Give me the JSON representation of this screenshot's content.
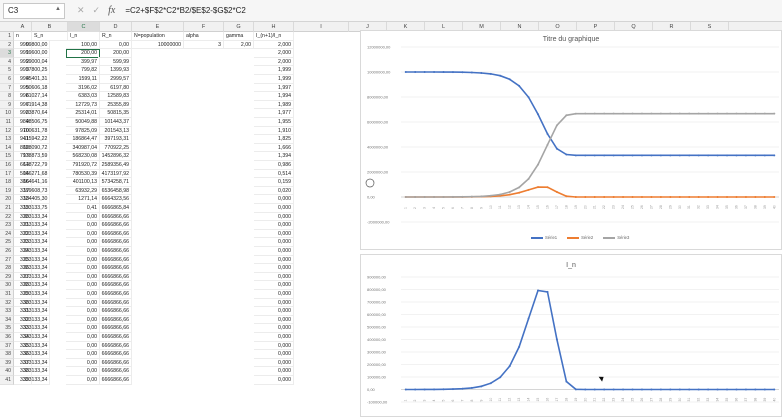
{
  "formula_bar": {
    "name_box": "C3",
    "icons": [
      "close-icon",
      "check-icon",
      "fx-icon"
    ],
    "fx_label": "fx",
    "formula": "=C2+$F$2*C2*B2/$E$2-$G$2*C2"
  },
  "columns": [
    "A",
    "B",
    "C",
    "D",
    "E",
    "F",
    "G",
    "H",
    "I",
    "J",
    "K",
    "L",
    "M",
    "N",
    "O",
    "P",
    "Q",
    "R",
    "S"
  ],
  "header_row": [
    "n",
    "S_n",
    "I_n",
    "R_n",
    "N=population",
    "alpha",
    "gamma",
    "I_(n+1)/I_n"
  ],
  "param_values": {
    "E": "10000000",
    "F": "3",
    "G": "2,00"
  },
  "rows": [
    [
      "0",
      "9999800,00",
      "100,00",
      "0,00",
      "2,000"
    ],
    [
      "1",
      "9999600,00",
      "200,00",
      "200,00",
      "2,000"
    ],
    [
      "2",
      "9999000,04",
      "399,97",
      "599,99",
      "2,000"
    ],
    [
      "3",
      "9997800,25",
      "799,82",
      "1399,93",
      "1,999"
    ],
    [
      "4",
      "9995401,31",
      "1599,11",
      "2999,57",
      "1,999"
    ],
    [
      "5",
      "9990606,18",
      "3196,02",
      "6197,80",
      "1,997"
    ],
    [
      "6",
      "9981027,14",
      "6383,03",
      "12589,83",
      "1,994"
    ],
    [
      "7",
      "9961914,38",
      "12729,73",
      "25355,89",
      "1,989"
    ],
    [
      "8",
      "9923870,64",
      "25314,01",
      "50815,35",
      "1,977"
    ],
    [
      "9",
      "9848506,75",
      "50049,88",
      "101443,37",
      "1,955"
    ],
    [
      "10",
      "9700631,78",
      "97825,09",
      "201543,13",
      "1,910"
    ],
    [
      "11",
      "9415942,22",
      "186864,47",
      "397193,31",
      "1,825"
    ],
    [
      "12",
      "8888090,72",
      "340987,04",
      "770922,25",
      "1,666"
    ],
    [
      "13",
      "7978873,59",
      "568230,08",
      "1452896,32",
      "1,394"
    ],
    [
      "14",
      "6618722,79",
      "791920,72",
      "2589356,49",
      "0,986"
    ],
    [
      "15",
      "5046271,68",
      "780530,39",
      "4173197,92",
      "0,514"
    ],
    [
      "16",
      "3864641,16",
      "401100,13",
      "5734258,71",
      "0,159"
    ],
    [
      "17",
      "3399608,73",
      "63932,29",
      "6536458,98",
      "0,020"
    ],
    [
      "18",
      "3334405,30",
      "1271,14",
      "6664323,56",
      "0,000"
    ],
    [
      "19",
      "3333133,75",
      "0,41",
      "6666865,84",
      "0,000"
    ],
    [
      "20",
      "3333133,34",
      "0,00",
      "6666866,66",
      "0,000"
    ],
    [
      "21",
      "3333133,34",
      "0,00",
      "6666866,66",
      "0,000"
    ],
    [
      "22",
      "3333133,34",
      "0,00",
      "6666866,66",
      "0,000"
    ],
    [
      "23",
      "3333133,34",
      "0,00",
      "6666866,66",
      "0,000"
    ],
    [
      "24",
      "3333133,34",
      "0,00",
      "6666866,66",
      "0,000"
    ],
    [
      "25",
      "3333133,34",
      "0,00",
      "6666866,66",
      "0,000"
    ],
    [
      "26",
      "3333133,34",
      "0,00",
      "6666866,66",
      "0,000"
    ],
    [
      "27",
      "3333133,34",
      "0,00",
      "6666866,66",
      "0,000"
    ],
    [
      "28",
      "3333133,34",
      "0,00",
      "6666866,66",
      "0,000"
    ],
    [
      "29",
      "3333133,34",
      "0,00",
      "6666866,66",
      "0,000"
    ],
    [
      "30",
      "3333133,34",
      "0,00",
      "6666866,66",
      "0,000"
    ],
    [
      "31",
      "3333133,34",
      "0,00",
      "6666866,66",
      "0,000"
    ],
    [
      "32",
      "3333133,34",
      "0,00",
      "6666866,66",
      "0,000"
    ],
    [
      "33",
      "3333133,34",
      "0,00",
      "6666866,66",
      "0,000"
    ],
    [
      "34",
      "3333133,34",
      "0,00",
      "6666866,66",
      "0,000"
    ],
    [
      "35",
      "3333133,34",
      "0,00",
      "6666866,66",
      "0,000"
    ],
    [
      "36",
      "3333133,34",
      "0,00",
      "6666866,66",
      "0,000"
    ],
    [
      "37",
      "3333133,34",
      "0,00",
      "6666866,66",
      "0,000"
    ],
    [
      "38",
      "3333133,34",
      "0,00",
      "6666866,66",
      "0,000"
    ],
    [
      "39",
      "3333133,34",
      "0,00",
      "6666866,66",
      "0,000"
    ]
  ],
  "colors": {
    "blue": "#4472c4",
    "orange": "#ed7d31",
    "gray": "#a5a5a5",
    "accent": "#217346"
  },
  "chart_data": [
    {
      "type": "line",
      "title": "Titre du graphique",
      "ylim": [
        -2000000,
        12000000
      ],
      "y_ticks": [
        "12000000,00",
        "10000000,00",
        "8000000,00",
        "6000000,00",
        "4000000,00",
        "2000000,00",
        "0,00",
        "-2000000,00"
      ],
      "x": [
        0,
        1,
        2,
        3,
        4,
        5,
        6,
        7,
        8,
        9,
        10,
        11,
        12,
        13,
        14,
        15,
        16,
        17,
        18,
        19,
        20,
        21,
        22,
        23,
        24,
        25,
        26,
        27,
        28,
        29,
        30,
        31,
        32,
        33,
        34,
        35,
        36,
        37,
        38,
        39
      ],
      "series": [
        {
          "name": "Série1",
          "color": "#4472c4",
          "values": [
            9999800,
            9999600,
            9999000,
            9997800,
            9995401,
            9990606,
            9981027,
            9961914,
            9923871,
            9848507,
            9700632,
            9415942,
            8888091,
            7978874,
            6618723,
            5046272,
            3864641,
            3399609,
            3334405,
            3333134,
            3333133,
            3333133,
            3333133,
            3333133,
            3333133,
            3333133,
            3333133,
            3333133,
            3333133,
            3333133,
            3333133,
            3333133,
            3333133,
            3333133,
            3333133,
            3333133,
            3333133,
            3333133,
            3333133,
            3333133
          ]
        },
        {
          "name": "Série2",
          "color": "#ed7d31",
          "values": [
            100,
            200,
            400,
            800,
            1599,
            3196,
            6383,
            12730,
            25314,
            50050,
            97825,
            186864,
            340987,
            568230,
            791921,
            780530,
            401100,
            63932,
            1271,
            0,
            0,
            0,
            0,
            0,
            0,
            0,
            0,
            0,
            0,
            0,
            0,
            0,
            0,
            0,
            0,
            0,
            0,
            0,
            0,
            0
          ]
        },
        {
          "name": "Série3",
          "color": "#a5a5a5",
          "values": [
            0,
            200,
            600,
            1400,
            3000,
            6198,
            12590,
            25356,
            50815,
            101443,
            201543,
            397193,
            770922,
            1452896,
            2589356,
            4173198,
            5734259,
            6536459,
            6664324,
            6666866,
            6666867,
            6666867,
            6666867,
            6666867,
            6666867,
            6666867,
            6666867,
            6666867,
            6666867,
            6666867,
            6666867,
            6666867,
            6666867,
            6666867,
            6666867,
            6666867,
            6666867,
            6666867,
            6666867,
            6666867
          ]
        }
      ],
      "legend": "bottom"
    },
    {
      "type": "line",
      "title": "I_n",
      "ylim": [
        -100000,
        900000
      ],
      "y_ticks": [
        "900000,00",
        "800000,00",
        "700000,00",
        "600000,00",
        "500000,00",
        "400000,00",
        "300000,00",
        "200000,00",
        "100000,00",
        "0,00",
        "-100000,00"
      ],
      "x": [
        0,
        1,
        2,
        3,
        4,
        5,
        6,
        7,
        8,
        9,
        10,
        11,
        12,
        13,
        14,
        15,
        16,
        17,
        18,
        19,
        20,
        21,
        22,
        23,
        24,
        25,
        26,
        27,
        28,
        29,
        30,
        31,
        32,
        33,
        34,
        35,
        36,
        37,
        38,
        39
      ],
      "series": [
        {
          "color": "#4472c4",
          "values": [
            100,
            200,
            400,
            800,
            1599,
            3196,
            6383,
            12730,
            25314,
            50050,
            97825,
            186864,
            340987,
            568230,
            791921,
            780530,
            401100,
            63932,
            1271,
            0,
            0,
            0,
            0,
            0,
            0,
            0,
            0,
            0,
            0,
            0,
            0,
            0,
            0,
            0,
            0,
            0,
            0,
            0,
            0,
            0
          ]
        }
      ]
    }
  ]
}
